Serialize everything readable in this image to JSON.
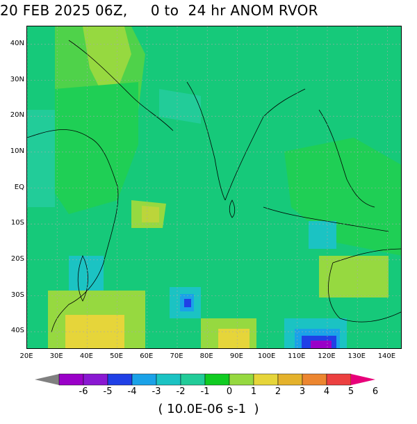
{
  "title": "20 FEB 2025 06Z,     0 to  24 hr ANOM RVOR",
  "map": {
    "lon_range": [
      20,
      145
    ],
    "lat_range": [
      -45,
      45
    ],
    "lat_labels": [
      "40N",
      "30N",
      "20N",
      "10N",
      "EQ",
      "10S",
      "20S",
      "30S",
      "40S"
    ],
    "lat_values": [
      40,
      30,
      20,
      10,
      0,
      -10,
      -20,
      -30,
      -40
    ],
    "lon_labels": [
      "20E",
      "30E",
      "40E",
      "50E",
      "60E",
      "70E",
      "80E",
      "90E",
      "100E",
      "110E",
      "120E",
      "130E",
      "140E"
    ],
    "lon_values": [
      20,
      30,
      40,
      50,
      60,
      70,
      80,
      90,
      100,
      110,
      120,
      130,
      140
    ],
    "background_color": "#16c97a"
  },
  "colorbar": {
    "labels": [
      "-6",
      "-5",
      "-4",
      "-3",
      "-2",
      "-1",
      "0",
      "1",
      "2",
      "3",
      "4",
      "5",
      "6"
    ],
    "colors": [
      "#9a00c8",
      "#8a18d2",
      "#2040e6",
      "#1aa2e8",
      "#1bc3c3",
      "#22cc99",
      "#10cc22",
      "#96d940",
      "#e6d53a",
      "#e4b22c",
      "#ec8630",
      "#ec4040"
    ],
    "low_end_color": "#808080",
    "high_end_color": "#e8007a"
  },
  "units": "( 10.0E-06 s-1  )"
}
